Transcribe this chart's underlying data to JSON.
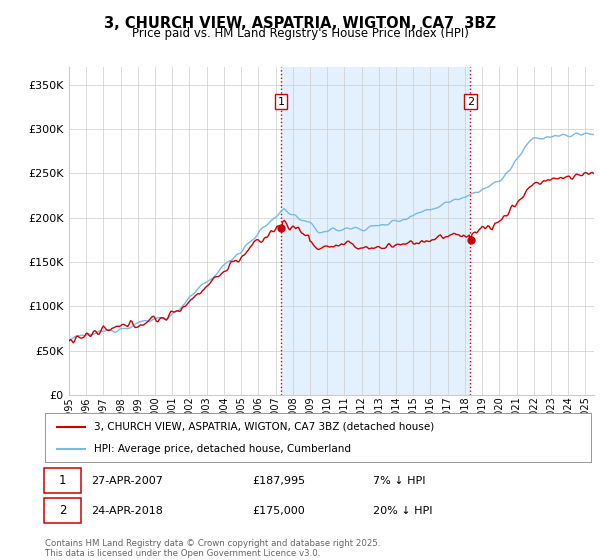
{
  "title": "3, CHURCH VIEW, ASPATRIA, WIGTON, CA7  3BZ",
  "subtitle": "Price paid vs. HM Land Registry's House Price Index (HPI)",
  "ytick_values": [
    0,
    50000,
    100000,
    150000,
    200000,
    250000,
    300000,
    350000
  ],
  "ylim": [
    0,
    370000
  ],
  "xlim_start": 1995.0,
  "xlim_end": 2025.5,
  "hpi_color": "#7ab8e8",
  "property_color": "#cc0000",
  "vline_color": "#cc0000",
  "shade_color": "#dceeff",
  "sale1_x": 2007.32,
  "sale1_y": 187995,
  "sale1_label": "1",
  "sale2_x": 2018.32,
  "sale2_y": 175000,
  "sale2_label": "2",
  "legend_property": "3, CHURCH VIEW, ASPATRIA, WIGTON, CA7 3BZ (detached house)",
  "legend_hpi": "HPI: Average price, detached house, Cumberland",
  "annotation1_date": "27-APR-2007",
  "annotation1_price": "£187,995",
  "annotation1_pct": "7% ↓ HPI",
  "annotation2_date": "24-APR-2018",
  "annotation2_price": "£175,000",
  "annotation2_pct": "20% ↓ HPI",
  "footer": "Contains HM Land Registry data © Crown copyright and database right 2025.\nThis data is licensed under the Open Government Licence v3.0.",
  "background_color": "#ffffff",
  "grid_color": "#cccccc"
}
